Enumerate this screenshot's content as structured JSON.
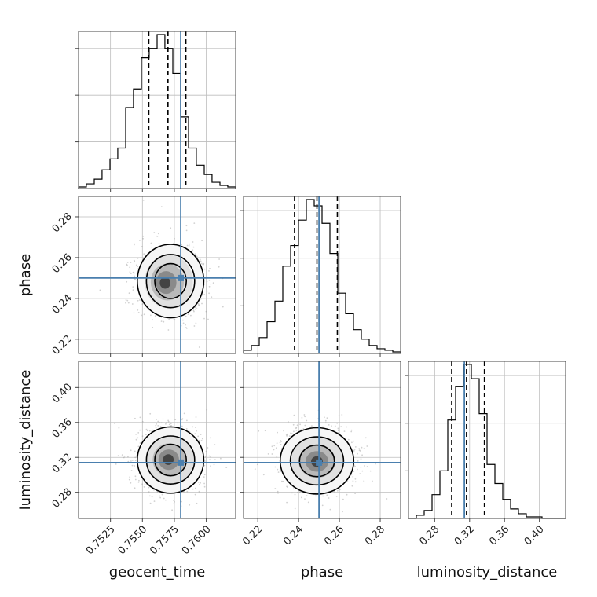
{
  "chart_data": {
    "type": "corner",
    "parameters": [
      {
        "name": "geocent_time",
        "label": "geocent_time",
        "range": [
          0.75,
          0.7623
        ],
        "ticks": [
          0.7525,
          0.755,
          0.7575,
          0.76
        ],
        "tick_labels": [
          "0.7525",
          "0.7550",
          "0.7575",
          "0.7600"
        ],
        "truth": 0.758,
        "quantiles": [
          0.7555,
          0.757,
          0.7584
        ],
        "hist_bins": [
          0.75,
          0.75061,
          0.75123,
          0.75184,
          0.75246,
          0.75307,
          0.75369,
          0.7543,
          0.75492,
          0.75553,
          0.75615,
          0.75676,
          0.75738,
          0.75799,
          0.75861,
          0.75922,
          0.75984,
          0.76045,
          0.76107,
          0.76168,
          0.7623
        ],
        "hist_counts": [
          0.01,
          0.03,
          0.06,
          0.12,
          0.19,
          0.26,
          0.52,
          0.64,
          0.84,
          0.9,
          0.99,
          0.9,
          0.74,
          0.46,
          0.26,
          0.15,
          0.09,
          0.04,
          0.02,
          0.01
        ]
      },
      {
        "name": "phase",
        "label": "phase",
        "range": [
          0.213,
          0.29
        ],
        "ticks": [
          0.22,
          0.24,
          0.26,
          0.28
        ],
        "tick_labels": [
          "0.22",
          "0.24",
          "0.26",
          "0.28"
        ],
        "truth": 0.25,
        "quantiles": [
          0.238,
          0.249,
          0.259
        ],
        "hist_bins": [
          0.213,
          0.21685,
          0.2207,
          0.22455,
          0.2284,
          0.23225,
          0.2361,
          0.23995,
          0.2438,
          0.24765,
          0.2515,
          0.25535,
          0.2592,
          0.26305,
          0.2669,
          0.27075,
          0.2746,
          0.27845,
          0.2823,
          0.28615,
          0.29
        ],
        "hist_counts": [
          0.02,
          0.05,
          0.1,
          0.2,
          0.33,
          0.55,
          0.68,
          0.84,
          0.97,
          0.93,
          0.82,
          0.63,
          0.38,
          0.25,
          0.15,
          0.09,
          0.05,
          0.03,
          0.02,
          0.01
        ]
      },
      {
        "name": "luminosity_distance",
        "label": "luminosity_distance",
        "range": [
          0.25,
          0.43
        ],
        "ticks": [
          0.28,
          0.32,
          0.36,
          0.4
        ],
        "tick_labels": [
          "0.28",
          "0.32",
          "0.36",
          "0.40"
        ],
        "truth": 0.314,
        "quantiles": [
          0.2995,
          0.3165,
          0.337
        ],
        "hist_bins": [
          0.25,
          0.259,
          0.268,
          0.277,
          0.286,
          0.295,
          0.304,
          0.313,
          0.322,
          0.331,
          0.34,
          0.349,
          0.358,
          0.367,
          0.376,
          0.385,
          0.394,
          0.403,
          0.412,
          0.421,
          0.43
        ],
        "hist_counts": [
          0.0,
          0.02,
          0.05,
          0.15,
          0.3,
          0.62,
          0.83,
          0.97,
          0.88,
          0.66,
          0.34,
          0.22,
          0.12,
          0.06,
          0.03,
          0.01,
          0.01,
          0.0,
          0.0,
          0.0
        ]
      }
    ],
    "pair_density": [
      {
        "x": "geocent_time",
        "y": "phase",
        "center": [
          0.7572,
          0.2485
        ],
        "spread": [
          0.0013,
          0.009
        ],
        "peak": [
          0.7567,
          0.2475
        ]
      },
      {
        "x": "geocent_time",
        "y": "luminosity_distance",
        "center": [
          0.7572,
          0.317
        ],
        "spread": [
          0.0013,
          0.019
        ],
        "peak": [
          0.757,
          0.3175
        ]
      },
      {
        "x": "phase",
        "y": "luminosity_distance",
        "center": [
          0.249,
          0.316
        ],
        "spread": [
          0.009,
          0.019
        ],
        "peak": [
          0.249,
          0.315
        ]
      }
    ],
    "truth_color": "#4a7fae",
    "grid": true,
    "legend": "none"
  }
}
